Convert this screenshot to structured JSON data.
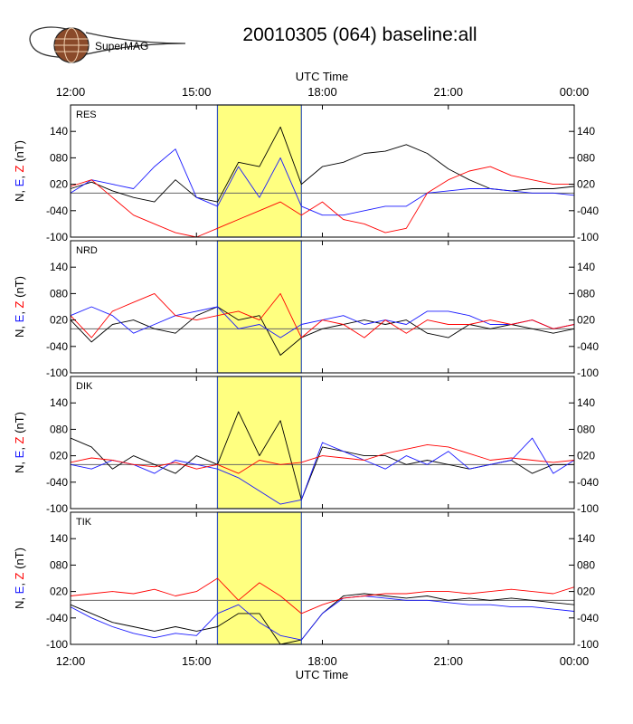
{
  "logo": {
    "text": "SuperMAG"
  },
  "title": "20010305 (064) baseline:all",
  "xlabel": "UTC Time",
  "ylabel_parts": [
    {
      "text": "N",
      "color": "#000000"
    },
    {
      "text": ", ",
      "color": "#000000"
    },
    {
      "text": "E",
      "color": "#1a1aff"
    },
    {
      "text": ", ",
      "color": "#000000"
    },
    {
      "text": "Z",
      "color": "#ff0000"
    },
    {
      "text": " (nT)",
      "color": "#000000"
    }
  ],
  "chart_data": {
    "type": "line",
    "x_unit": "hours UTC",
    "xlim": [
      12,
      24
    ],
    "x_ticks": [
      12,
      15,
      18,
      21,
      24
    ],
    "x_tick_labels": [
      "12:00",
      "15:00",
      "18:00",
      "21:00",
      "00:00"
    ],
    "ylim": [
      -100,
      200
    ],
    "y_ticks": [
      -100,
      -40,
      20,
      80,
      140
    ],
    "y_tick_labels": [
      "-100",
      "-040",
      "020",
      "080",
      "140"
    ],
    "highlight": {
      "x_start": 15.5,
      "x_end": 17.5,
      "color": "#ffff80"
    },
    "series_colors": {
      "N": "#000000",
      "E": "#1a1aff",
      "Z": "#ff0000"
    },
    "panels": [
      {
        "station": "RES",
        "x": [
          12.0,
          12.5,
          13.0,
          13.5,
          14.0,
          14.5,
          15.0,
          15.5,
          16.0,
          16.5,
          17.0,
          17.5,
          18.0,
          18.5,
          19.0,
          19.5,
          20.0,
          20.5,
          21.0,
          21.5,
          22.0,
          22.5,
          23.0,
          23.5,
          24.0
        ],
        "series": [
          {
            "name": "N",
            "values": [
              10,
              25,
              5,
              -10,
              -20,
              30,
              -10,
              -20,
              70,
              60,
              150,
              20,
              60,
              70,
              90,
              95,
              110,
              90,
              55,
              30,
              10,
              5,
              10,
              10,
              15
            ]
          },
          {
            "name": "E",
            "values": [
              0,
              30,
              20,
              10,
              60,
              100,
              -10,
              -30,
              60,
              -10,
              80,
              -30,
              -50,
              -50,
              -40,
              -30,
              -30,
              0,
              5,
              10,
              10,
              5,
              0,
              0,
              -5
            ]
          },
          {
            "name": "Z",
            "values": [
              15,
              30,
              -10,
              -50,
              -70,
              -90,
              -100,
              -80,
              -60,
              -40,
              -20,
              -50,
              -20,
              -60,
              -70,
              -90,
              -80,
              0,
              30,
              50,
              60,
              40,
              30,
              20,
              20
            ]
          }
        ]
      },
      {
        "station": "NRD",
        "x": [
          12.0,
          12.5,
          13.0,
          13.5,
          14.0,
          14.5,
          15.0,
          15.5,
          16.0,
          16.5,
          17.0,
          17.5,
          18.0,
          18.5,
          19.0,
          19.5,
          20.0,
          20.5,
          21.0,
          21.5,
          22.0,
          22.5,
          23.0,
          23.5,
          24.0
        ],
        "series": [
          {
            "name": "N",
            "values": [
              20,
              -30,
              10,
              20,
              0,
              -10,
              30,
              50,
              20,
              30,
              -60,
              -20,
              0,
              10,
              20,
              10,
              20,
              -10,
              -20,
              10,
              0,
              10,
              0,
              -10,
              0
            ]
          },
          {
            "name": "E",
            "values": [
              30,
              50,
              30,
              -10,
              10,
              30,
              40,
              50,
              0,
              10,
              -20,
              10,
              20,
              30,
              10,
              20,
              10,
              40,
              40,
              30,
              10,
              10,
              20,
              0,
              10
            ]
          },
          {
            "name": "Z",
            "values": [
              30,
              -20,
              40,
              60,
              80,
              30,
              20,
              30,
              40,
              20,
              80,
              -20,
              20,
              10,
              -20,
              20,
              -10,
              20,
              10,
              10,
              20,
              10,
              20,
              0,
              10
            ]
          }
        ]
      },
      {
        "station": "DIK",
        "x": [
          12.0,
          12.5,
          13.0,
          13.5,
          14.0,
          14.5,
          15.0,
          15.5,
          16.0,
          16.5,
          17.0,
          17.5,
          18.0,
          18.5,
          19.0,
          19.5,
          20.0,
          20.5,
          21.0,
          21.5,
          22.0,
          22.5,
          23.0,
          23.5,
          24.0
        ],
        "series": [
          {
            "name": "N",
            "values": [
              60,
              40,
              -10,
              20,
              0,
              -20,
              20,
              0,
              120,
              20,
              100,
              -80,
              40,
              30,
              20,
              20,
              0,
              10,
              0,
              -10,
              0,
              10,
              -20,
              0,
              0
            ]
          },
          {
            "name": "E",
            "values": [
              0,
              -10,
              10,
              0,
              -20,
              10,
              0,
              -10,
              -30,
              -60,
              -90,
              -80,
              50,
              30,
              10,
              -10,
              20,
              0,
              30,
              -10,
              0,
              10,
              60,
              -20,
              10
            ]
          },
          {
            "name": "Z",
            "values": [
              5,
              15,
              10,
              0,
              -5,
              5,
              -10,
              0,
              -20,
              10,
              0,
              5,
              20,
              15,
              10,
              25,
              35,
              45,
              40,
              25,
              10,
              15,
              10,
              5,
              10
            ]
          }
        ]
      },
      {
        "station": "TIK",
        "x": [
          12.0,
          12.5,
          13.0,
          13.5,
          14.0,
          14.5,
          15.0,
          15.5,
          16.0,
          16.5,
          17.0,
          17.5,
          18.0,
          18.5,
          19.0,
          19.5,
          20.0,
          20.5,
          21.0,
          21.5,
          22.0,
          22.5,
          23.0,
          23.5,
          24.0
        ],
        "series": [
          {
            "name": "N",
            "values": [
              -10,
              -30,
              -50,
              -60,
              -70,
              -60,
              -70,
              -60,
              -30,
              -30,
              -100,
              -90,
              -30,
              10,
              15,
              10,
              5,
              10,
              0,
              5,
              0,
              5,
              0,
              -5,
              -10
            ]
          },
          {
            "name": "E",
            "values": [
              -15,
              -40,
              -60,
              -75,
              -85,
              -75,
              -80,
              -30,
              -10,
              -50,
              -80,
              -90,
              -30,
              5,
              10,
              5,
              0,
              0,
              -5,
              -10,
              -10,
              -15,
              -15,
              -20,
              -25
            ]
          },
          {
            "name": "Z",
            "values": [
              10,
              15,
              20,
              15,
              25,
              10,
              20,
              50,
              0,
              40,
              10,
              -30,
              -10,
              5,
              10,
              15,
              15,
              20,
              20,
              15,
              20,
              25,
              20,
              15,
              30
            ]
          }
        ]
      }
    ]
  }
}
